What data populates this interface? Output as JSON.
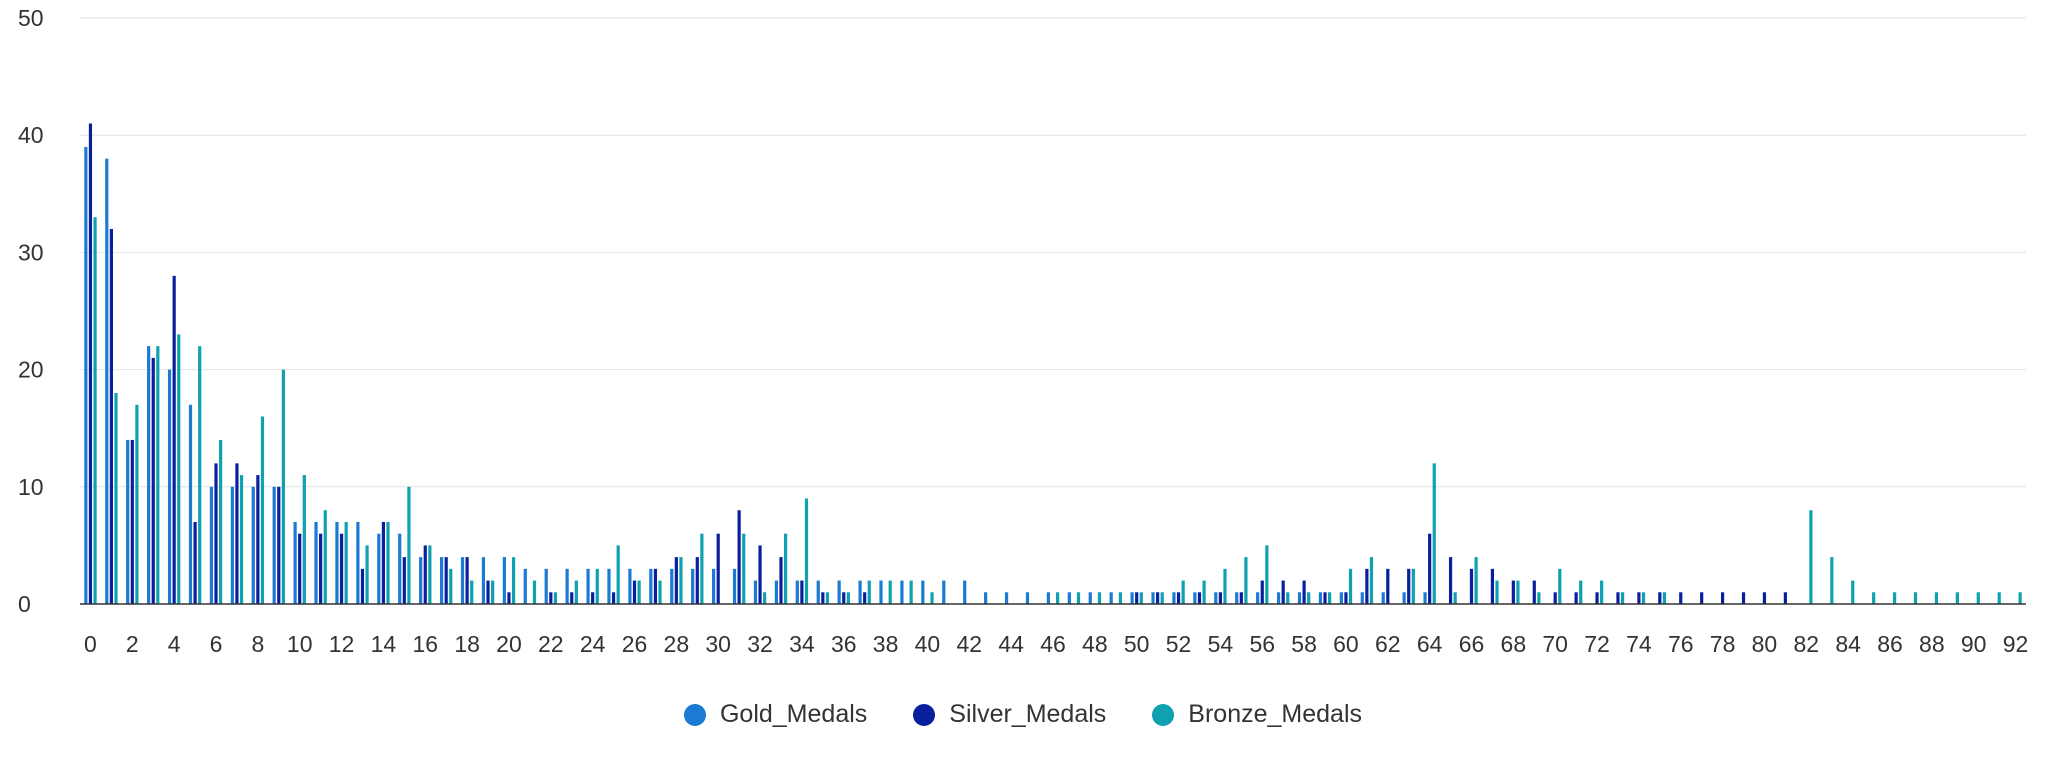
{
  "chart_data": {
    "type": "bar",
    "title": "",
    "xlabel": "",
    "ylabel": "",
    "ylim": [
      0,
      50
    ],
    "yticks": [
      0,
      10,
      20,
      30,
      40,
      50
    ],
    "grid": true,
    "legend_position": "bottom",
    "categories": [
      0,
      1,
      2,
      3,
      4,
      5,
      6,
      7,
      8,
      9,
      10,
      11,
      12,
      13,
      14,
      15,
      16,
      17,
      18,
      19,
      20,
      21,
      22,
      23,
      24,
      25,
      26,
      27,
      28,
      29,
      30,
      31,
      32,
      33,
      34,
      35,
      36,
      37,
      38,
      39,
      40,
      41,
      42,
      43,
      44,
      45,
      46,
      47,
      48,
      49,
      50,
      51,
      52,
      53,
      54,
      55,
      56,
      57,
      58,
      59,
      60,
      61,
      62,
      63,
      64,
      65,
      66,
      67,
      68,
      69,
      70,
      71,
      72,
      73,
      74,
      75,
      76,
      77,
      78,
      79,
      80,
      81,
      82,
      83,
      84,
      85,
      86,
      87,
      88,
      89,
      90,
      91,
      92
    ],
    "xtick_labels": [
      "0",
      "2",
      "4",
      "6",
      "8",
      "10",
      "12",
      "14",
      "16",
      "18",
      "20",
      "22",
      "24",
      "26",
      "28",
      "30",
      "32",
      "34",
      "36",
      "38",
      "40",
      "42",
      "44",
      "46",
      "48",
      "50",
      "52",
      "54",
      "56",
      "58",
      "60",
      "62",
      "64",
      "66",
      "68",
      "70",
      "72",
      "74",
      "76",
      "78",
      "80",
      "82",
      "84",
      "86",
      "88",
      "90",
      "92"
    ],
    "series": [
      {
        "name": "Gold_Medals",
        "color": "#1a7ad4",
        "values": [
          39,
          38,
          14,
          22,
          20,
          17,
          10,
          10,
          10,
          10,
          7,
          7,
          7,
          7,
          6,
          6,
          4,
          4,
          4,
          4,
          4,
          3,
          3,
          3,
          3,
          3,
          3,
          3,
          3,
          3,
          3,
          3,
          2,
          2,
          2,
          2,
          2,
          2,
          2,
          2,
          2,
          2,
          2,
          1,
          1,
          1,
          1,
          1,
          1,
          1,
          1,
          1,
          1,
          1,
          1,
          1,
          1,
          1,
          1,
          1,
          1,
          1,
          1,
          1,
          1,
          0,
          0,
          0,
          0,
          0,
          0,
          0,
          0,
          0,
          0,
          0,
          0,
          0,
          0,
          0,
          0,
          0,
          0,
          0,
          0,
          0,
          0,
          0,
          0,
          0,
          0,
          0,
          0
        ]
      },
      {
        "name": "Silver_Medals",
        "color": "#0a1f9e",
        "values": [
          41,
          32,
          14,
          21,
          28,
          7,
          12,
          12,
          11,
          10,
          6,
          6,
          6,
          3,
          7,
          4,
          5,
          4,
          4,
          2,
          1,
          0,
          1,
          1,
          1,
          1,
          2,
          3,
          4,
          4,
          6,
          8,
          5,
          4,
          2,
          1,
          1,
          1,
          0,
          0,
          0,
          0,
          0,
          0,
          0,
          0,
          0,
          0,
          0,
          0,
          1,
          1,
          1,
          1,
          1,
          1,
          2,
          2,
          2,
          1,
          1,
          3,
          3,
          3,
          6,
          4,
          3,
          3,
          2,
          2,
          1,
          1,
          1,
          1,
          1,
          1,
          1,
          1,
          1,
          1,
          1,
          1,
          0,
          0,
          0,
          0,
          0,
          0,
          0,
          0,
          0,
          0,
          0
        ]
      },
      {
        "name": "Bronze_Medals",
        "color": "#10a1b0",
        "values": [
          33,
          18,
          17,
          22,
          23,
          22,
          14,
          11,
          16,
          20,
          11,
          8,
          7,
          5,
          7,
          10,
          5,
          3,
          2,
          2,
          4,
          2,
          1,
          2,
          3,
          5,
          2,
          2,
          4,
          6,
          0,
          6,
          1,
          6,
          9,
          1,
          1,
          2,
          2,
          2,
          1,
          0,
          0,
          0,
          0,
          0,
          1,
          1,
          1,
          1,
          1,
          1,
          2,
          2,
          3,
          4,
          5,
          1,
          1,
          1,
          3,
          4,
          0,
          3,
          12,
          1,
          4,
          2,
          2,
          1,
          3,
          2,
          2,
          1,
          1,
          1,
          0,
          0,
          0,
          0,
          0,
          0,
          8,
          4,
          2,
          1,
          1,
          1,
          1,
          1,
          1,
          1,
          1
        ]
      }
    ]
  }
}
